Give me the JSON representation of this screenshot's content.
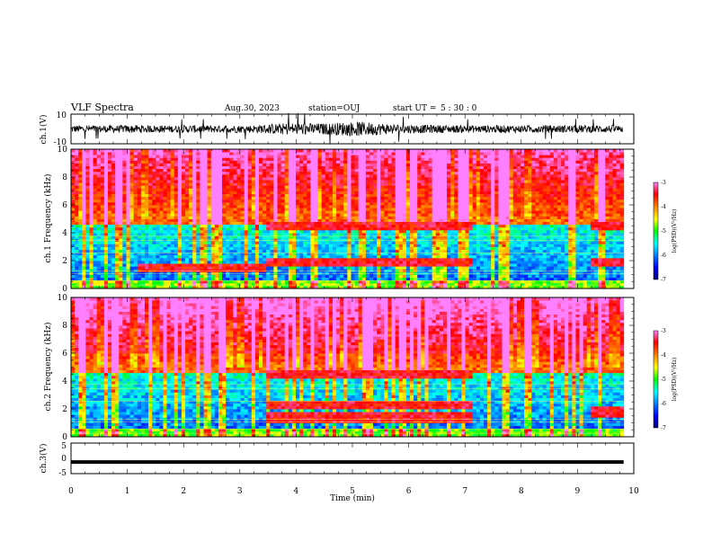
{
  "header": {
    "title": "VLF Spectra",
    "date": "Aug.30, 2023",
    "station": "station=OUJ",
    "start_label": "start  UT  =",
    "start_time": "5 : 30 : 0"
  },
  "chart_data": [
    {
      "type": "line",
      "name": "ch1-waveform",
      "ylabel": "ch.1(V)",
      "ylim": [
        -10,
        10
      ],
      "yticks": [
        "10",
        "-10"
      ],
      "xlim": [
        0,
        10
      ],
      "x": [
        0,
        0.3,
        0.6,
        0.9,
        1.2,
        1.5,
        1.8,
        2.1,
        2.4,
        2.7,
        3.0,
        3.3,
        3.6,
        3.9,
        4.2,
        4.5,
        4.8,
        5.1,
        5.4,
        5.7,
        6.0,
        6.3,
        6.6,
        6.9,
        7.2,
        7.5,
        7.8,
        8.1,
        8.4,
        8.7,
        9.0,
        9.3,
        9.6,
        9.8
      ],
      "y_amplitude": [
        2.5,
        2.6,
        2.4,
        2.5,
        2.7,
        2.5,
        2.4,
        2.6,
        2.5,
        2.5,
        2.6,
        2.7,
        3.5,
        4.2,
        4.0,
        3.8,
        4.5,
        5.0,
        4.3,
        3.5,
        3.0,
        2.8,
        2.7,
        2.6,
        2.5,
        2.6,
        2.5,
        2.4,
        2.6,
        2.5,
        2.6,
        2.5,
        2.6,
        2.5
      ]
    },
    {
      "type": "heatmap",
      "name": "ch1-spectrogram",
      "ylabel": "ch.1 Frequency (kHz)",
      "ylim": [
        0,
        10
      ],
      "yticks": [
        "0",
        "2",
        "4",
        "6",
        "8",
        "10"
      ],
      "xlim": [
        0,
        9.82
      ],
      "colorbar": {
        "label": "log(PSD)(V²/Hz)",
        "range": [
          -7,
          -3
        ],
        "ticks": [
          "-3",
          "-4",
          "-5",
          "-6",
          "-7"
        ]
      },
      "features": [
        {
          "label": "band",
          "t_start": 1.15,
          "t_end": 3.45,
          "f_khz": 1.5
        },
        {
          "label": "band",
          "t_start": 3.5,
          "t_end": 7.15,
          "f_khz": 1.9
        },
        {
          "label": "band",
          "t_start": 3.5,
          "t_end": 7.15,
          "f_khz": 4.5
        },
        {
          "label": "band",
          "t_start": 9.25,
          "t_end": 9.82,
          "f_khz": 1.9
        },
        {
          "label": "band",
          "t_start": 9.25,
          "t_end": 9.82,
          "f_khz": 4.5
        }
      ]
    },
    {
      "type": "heatmap",
      "name": "ch2-spectrogram",
      "ylabel": "ch.2 Frequency (kHz)",
      "ylim": [
        0,
        10
      ],
      "yticks": [
        "0",
        "2",
        "4",
        "6",
        "8",
        "10"
      ],
      "xlim": [
        0,
        9.82
      ],
      "colorbar": {
        "label": "log(PSD)(V²/Hz)",
        "range": [
          -7,
          -3
        ],
        "ticks": [
          "-3",
          "-4",
          "-5",
          "-6",
          "-7"
        ]
      },
      "features": [
        {
          "label": "band",
          "t_start": 3.5,
          "t_end": 7.15,
          "f_khz": 1.4
        },
        {
          "label": "band",
          "t_start": 3.5,
          "t_end": 7.15,
          "f_khz": 2.3
        },
        {
          "label": "band",
          "t_start": 3.5,
          "t_end": 7.15,
          "f_khz": 4.5
        },
        {
          "label": "band",
          "t_start": 9.25,
          "t_end": 9.82,
          "f_khz": 1.8
        }
      ]
    },
    {
      "type": "line",
      "name": "ch3-waveform",
      "ylabel": "ch.3(V)",
      "ylim": [
        -5,
        5
      ],
      "yticks": [
        "5",
        "0",
        "-5"
      ],
      "xlim": [
        0,
        10
      ],
      "x": [
        0,
        9.82
      ],
      "y": [
        -1.2,
        -1.2
      ]
    }
  ],
  "x_axis": {
    "label": "Time  (min)",
    "ticks": [
      "0",
      "1",
      "2",
      "3",
      "4",
      "5",
      "6",
      "7",
      "8",
      "9",
      "10"
    ],
    "range": [
      0,
      10
    ]
  },
  "colors": {
    "ink": "#000000",
    "colormap": [
      "#00007f",
      "#0000ff",
      "#0080ff",
      "#00ffff",
      "#00ff00",
      "#ffff00",
      "#ff8000",
      "#ff0000",
      "#ff80ff"
    ]
  }
}
